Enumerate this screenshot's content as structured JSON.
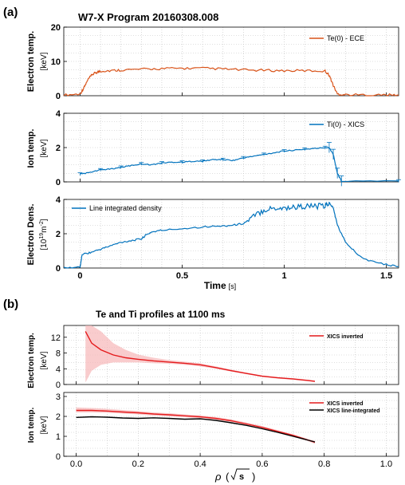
{
  "panel_labels": {
    "a": "(a)",
    "b": "(b)"
  },
  "colors": {
    "te": "#d95319",
    "ti": "#0072bd",
    "ne": "#0072bd",
    "inv": "#e41a1c",
    "band": "#f7b6b8",
    "line_int": "#000000",
    "grid": "#bfbfbf"
  },
  "chart_data": [
    {
      "type": "line",
      "title": "W7-X Program 20160308.008",
      "ylabel": "Electron temp.",
      "yunit": "[keV]",
      "xlim": [
        -0.08,
        1.56
      ],
      "ylim": [
        0,
        20
      ],
      "yticks": [
        0,
        10,
        20
      ],
      "xticks": [
        0,
        0.5,
        1,
        1.5
      ],
      "xtick_labels": [
        "0",
        "0.5",
        "1",
        "1.5"
      ],
      "legend": "top-right",
      "grid": true,
      "series": [
        {
          "name": "Te(0) - ECE",
          "x": [
            -0.08,
            0.0,
            0.02,
            0.04,
            0.06,
            0.08,
            0.1,
            0.15,
            0.2,
            0.3,
            0.4,
            0.5,
            0.6,
            0.7,
            0.8,
            0.9,
            1.0,
            1.1,
            1.2,
            1.22,
            1.24,
            1.26,
            1.3,
            1.4,
            1.5,
            1.56
          ],
          "y": [
            0.2,
            0.5,
            2.5,
            4.8,
            6.2,
            6.8,
            7.2,
            7.3,
            7.5,
            7.7,
            7.9,
            8.0,
            8.0,
            7.8,
            7.5,
            7.4,
            7.3,
            7.3,
            7.2,
            6.0,
            3.0,
            0.5,
            0.3,
            0.2,
            0.2,
            0.2
          ]
        }
      ]
    },
    {
      "type": "line",
      "ylabel": "Ion temp.",
      "yunit": "[keV]",
      "xlim": [
        -0.08,
        1.56
      ],
      "ylim": [
        0,
        4
      ],
      "yticks": [
        0,
        2,
        4
      ],
      "legend": "top-right",
      "grid": true,
      "series": [
        {
          "name": "Ti(0) - XICS",
          "x": [
            0.0,
            0.05,
            0.1,
            0.15,
            0.2,
            0.25,
            0.3,
            0.35,
            0.4,
            0.45,
            0.5,
            0.55,
            0.6,
            0.65,
            0.7,
            0.75,
            0.8,
            0.85,
            0.9,
            0.95,
            1.0,
            1.05,
            1.1,
            1.15,
            1.2,
            1.22,
            1.24,
            1.26,
            1.28,
            1.56
          ],
          "y": [
            0.45,
            0.55,
            0.7,
            0.75,
            0.85,
            0.95,
            1.05,
            1.0,
            1.1,
            1.15,
            1.15,
            1.2,
            1.2,
            1.3,
            1.3,
            1.25,
            1.4,
            1.5,
            1.6,
            1.7,
            1.8,
            1.85,
            1.9,
            1.95,
            2.0,
            2.0,
            1.6,
            0.5,
            0.05,
            0.05
          ]
        }
      ]
    },
    {
      "type": "line",
      "ylabel": "Electron Dens.",
      "yunit_base": "[10",
      "yunit_exp1": "19",
      "yunit_mid": "m",
      "yunit_exp2": "-2",
      "yunit_end": "]",
      "xlabel": "Time",
      "xunit": "[s]",
      "xlim": [
        -0.08,
        1.56
      ],
      "ylim": [
        0,
        4
      ],
      "yticks": [
        0,
        2,
        4
      ],
      "xticks": [
        0,
        0.5,
        1,
        1.5
      ],
      "xtick_labels": [
        "0",
        "0.5",
        "1",
        "1.5"
      ],
      "legend": "top-left",
      "grid": true,
      "series": [
        {
          "name": "Line integrated density",
          "x": [
            -0.08,
            0.0,
            0.01,
            0.05,
            0.1,
            0.15,
            0.2,
            0.25,
            0.3,
            0.32,
            0.35,
            0.4,
            0.5,
            0.6,
            0.7,
            0.75,
            0.8,
            0.85,
            0.9,
            0.95,
            1.0,
            1.05,
            1.1,
            1.15,
            1.2,
            1.22,
            1.24,
            1.26,
            1.3,
            1.35,
            1.4,
            1.5,
            1.56
          ],
          "y": [
            0.0,
            0.05,
            0.8,
            0.9,
            1.1,
            1.3,
            1.5,
            1.6,
            1.7,
            1.9,
            2.1,
            2.2,
            2.3,
            2.4,
            2.45,
            2.5,
            2.6,
            3.0,
            3.4,
            3.5,
            3.5,
            3.55,
            3.6,
            3.6,
            3.6,
            3.8,
            3.5,
            2.5,
            1.5,
            0.9,
            0.5,
            0.2,
            0.1
          ]
        }
      ]
    },
    {
      "type": "line",
      "title": "Te and Ti profiles at 1100 ms",
      "ylabel": "Electron temp.",
      "yunit": "[keV]",
      "xlim": [
        -0.04,
        1.04
      ],
      "ylim": [
        0,
        15
      ],
      "yticks": [
        0,
        4,
        8,
        12
      ],
      "legend": "top-right",
      "grid": true,
      "series": [
        {
          "name": "XICS inverted",
          "x": [
            0.03,
            0.05,
            0.08,
            0.12,
            0.16,
            0.2,
            0.25,
            0.3,
            0.35,
            0.4,
            0.45,
            0.5,
            0.55,
            0.6,
            0.65,
            0.7,
            0.75,
            0.77
          ],
          "y": [
            13.5,
            10.5,
            8.8,
            7.5,
            6.8,
            6.4,
            6.0,
            5.7,
            5.4,
            5.0,
            4.3,
            3.5,
            2.8,
            2.1,
            1.7,
            1.4,
            1.0,
            0.8
          ],
          "band_lower": [
            0.5,
            3.5,
            5.0,
            5.6,
            5.6,
            5.6,
            5.4,
            5.3,
            5.0,
            4.6,
            4.0,
            3.3,
            2.6,
            1.9,
            1.5,
            1.2,
            0.8,
            0.6
          ],
          "band_upper": [
            15.0,
            15.0,
            13.5,
            10.5,
            8.8,
            7.6,
            6.8,
            6.2,
            5.8,
            5.4,
            4.6,
            3.8,
            3.0,
            2.3,
            1.9,
            1.6,
            1.2,
            1.0
          ]
        }
      ]
    },
    {
      "type": "line",
      "ylabel": "Ion temp.",
      "yunit": "[keV]",
      "xlabel_math": "ρ",
      "xlim": [
        -0.04,
        1.04
      ],
      "ylim": [
        0,
        3.2
      ],
      "yticks": [
        0,
        1,
        2,
        3
      ],
      "xticks": [
        0.0,
        0.2,
        0.4,
        0.6,
        0.8,
        1.0
      ],
      "xtick_labels": [
        "0.0",
        "0.2",
        "0.4",
        "0.6",
        "0.8",
        "1.0"
      ],
      "legend": "top-right",
      "grid": true,
      "series": [
        {
          "name": "XICS inverted",
          "x": [
            0.0,
            0.05,
            0.1,
            0.15,
            0.2,
            0.25,
            0.3,
            0.35,
            0.4,
            0.45,
            0.5,
            0.55,
            0.6,
            0.65,
            0.7,
            0.75,
            0.77
          ],
          "y": [
            2.3,
            2.3,
            2.27,
            2.22,
            2.18,
            2.12,
            2.08,
            2.03,
            1.98,
            1.9,
            1.78,
            1.62,
            1.45,
            1.25,
            1.05,
            0.8,
            0.7
          ],
          "band_lower": [
            2.2,
            2.2,
            2.18,
            2.14,
            2.1,
            2.04,
            2.0,
            1.96,
            1.91,
            1.84,
            1.72,
            1.56,
            1.4,
            1.2,
            1.0,
            0.75,
            0.62
          ],
          "band_upper": [
            2.45,
            2.42,
            2.38,
            2.32,
            2.27,
            2.2,
            2.16,
            2.1,
            2.05,
            1.97,
            1.85,
            1.69,
            1.52,
            1.31,
            1.1,
            0.86,
            0.78
          ]
        },
        {
          "name": "XICS line-integrated",
          "x": [
            0.0,
            0.05,
            0.1,
            0.15,
            0.2,
            0.25,
            0.3,
            0.35,
            0.4,
            0.45,
            0.5,
            0.55,
            0.6,
            0.65,
            0.7,
            0.75,
            0.77
          ],
          "y": [
            1.95,
            1.98,
            1.96,
            1.92,
            1.9,
            1.93,
            1.9,
            1.86,
            1.88,
            1.8,
            1.68,
            1.55,
            1.38,
            1.2,
            1.0,
            0.8,
            0.72
          ]
        }
      ]
    }
  ]
}
